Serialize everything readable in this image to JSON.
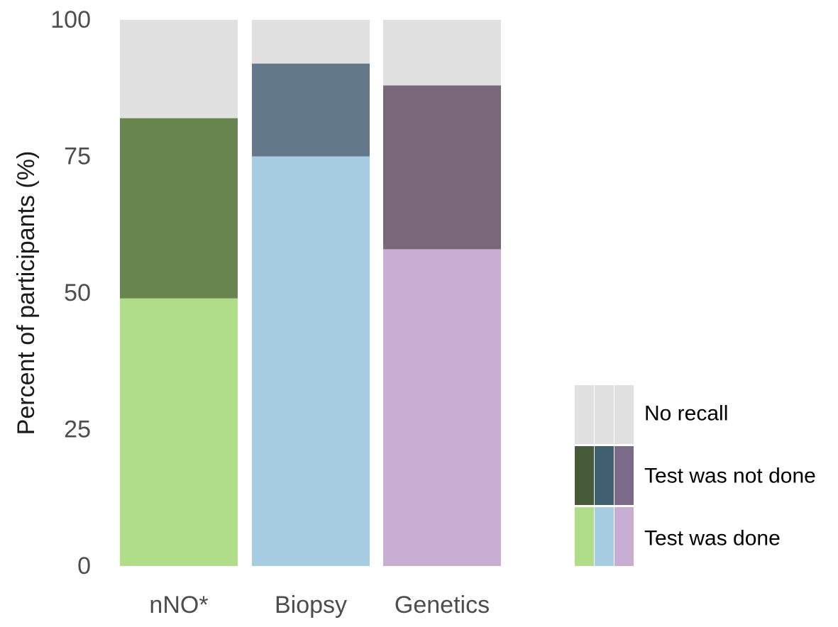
{
  "chart_data": {
    "type": "bar",
    "stacked": true,
    "normalized_percent": true,
    "categories": [
      "nNO*",
      "Biopsy",
      "Genetics"
    ],
    "ylabel": "Percent of participants (%)",
    "xlabel": "",
    "ylim": [
      0,
      100
    ],
    "yticks": [
      0,
      25,
      50,
      75,
      100
    ],
    "grid": false,
    "legend_position": "bottom-right",
    "series": [
      {
        "name": "Test was done",
        "values": [
          49,
          75,
          58
        ],
        "colors": [
          "#b0dd88",
          "#a6cde2",
          "#c9aed4"
        ]
      },
      {
        "name": "Test was not done",
        "values": [
          33,
          17,
          30
        ],
        "colors": [
          "#68844f",
          "#637989",
          "#786879"
        ]
      },
      {
        "name": "No recall",
        "values": [
          18,
          8,
          12
        ],
        "colors": [
          "#e1e1e1",
          "#e1e1e1",
          "#e1e1e1"
        ]
      }
    ],
    "legend": {
      "entries": [
        "No recall",
        "Test was not done",
        "Test was done"
      ],
      "swatch_colors": {
        "No recall": [
          "#e1e1e1",
          "#e1e1e1",
          "#e1e1e1"
        ],
        "Test was not done": [
          "#465b37",
          "#41606f",
          "#7c6a89"
        ],
        "Test was done": [
          "#b0dd88",
          "#a6cde2",
          "#c9aed4"
        ]
      }
    }
  }
}
